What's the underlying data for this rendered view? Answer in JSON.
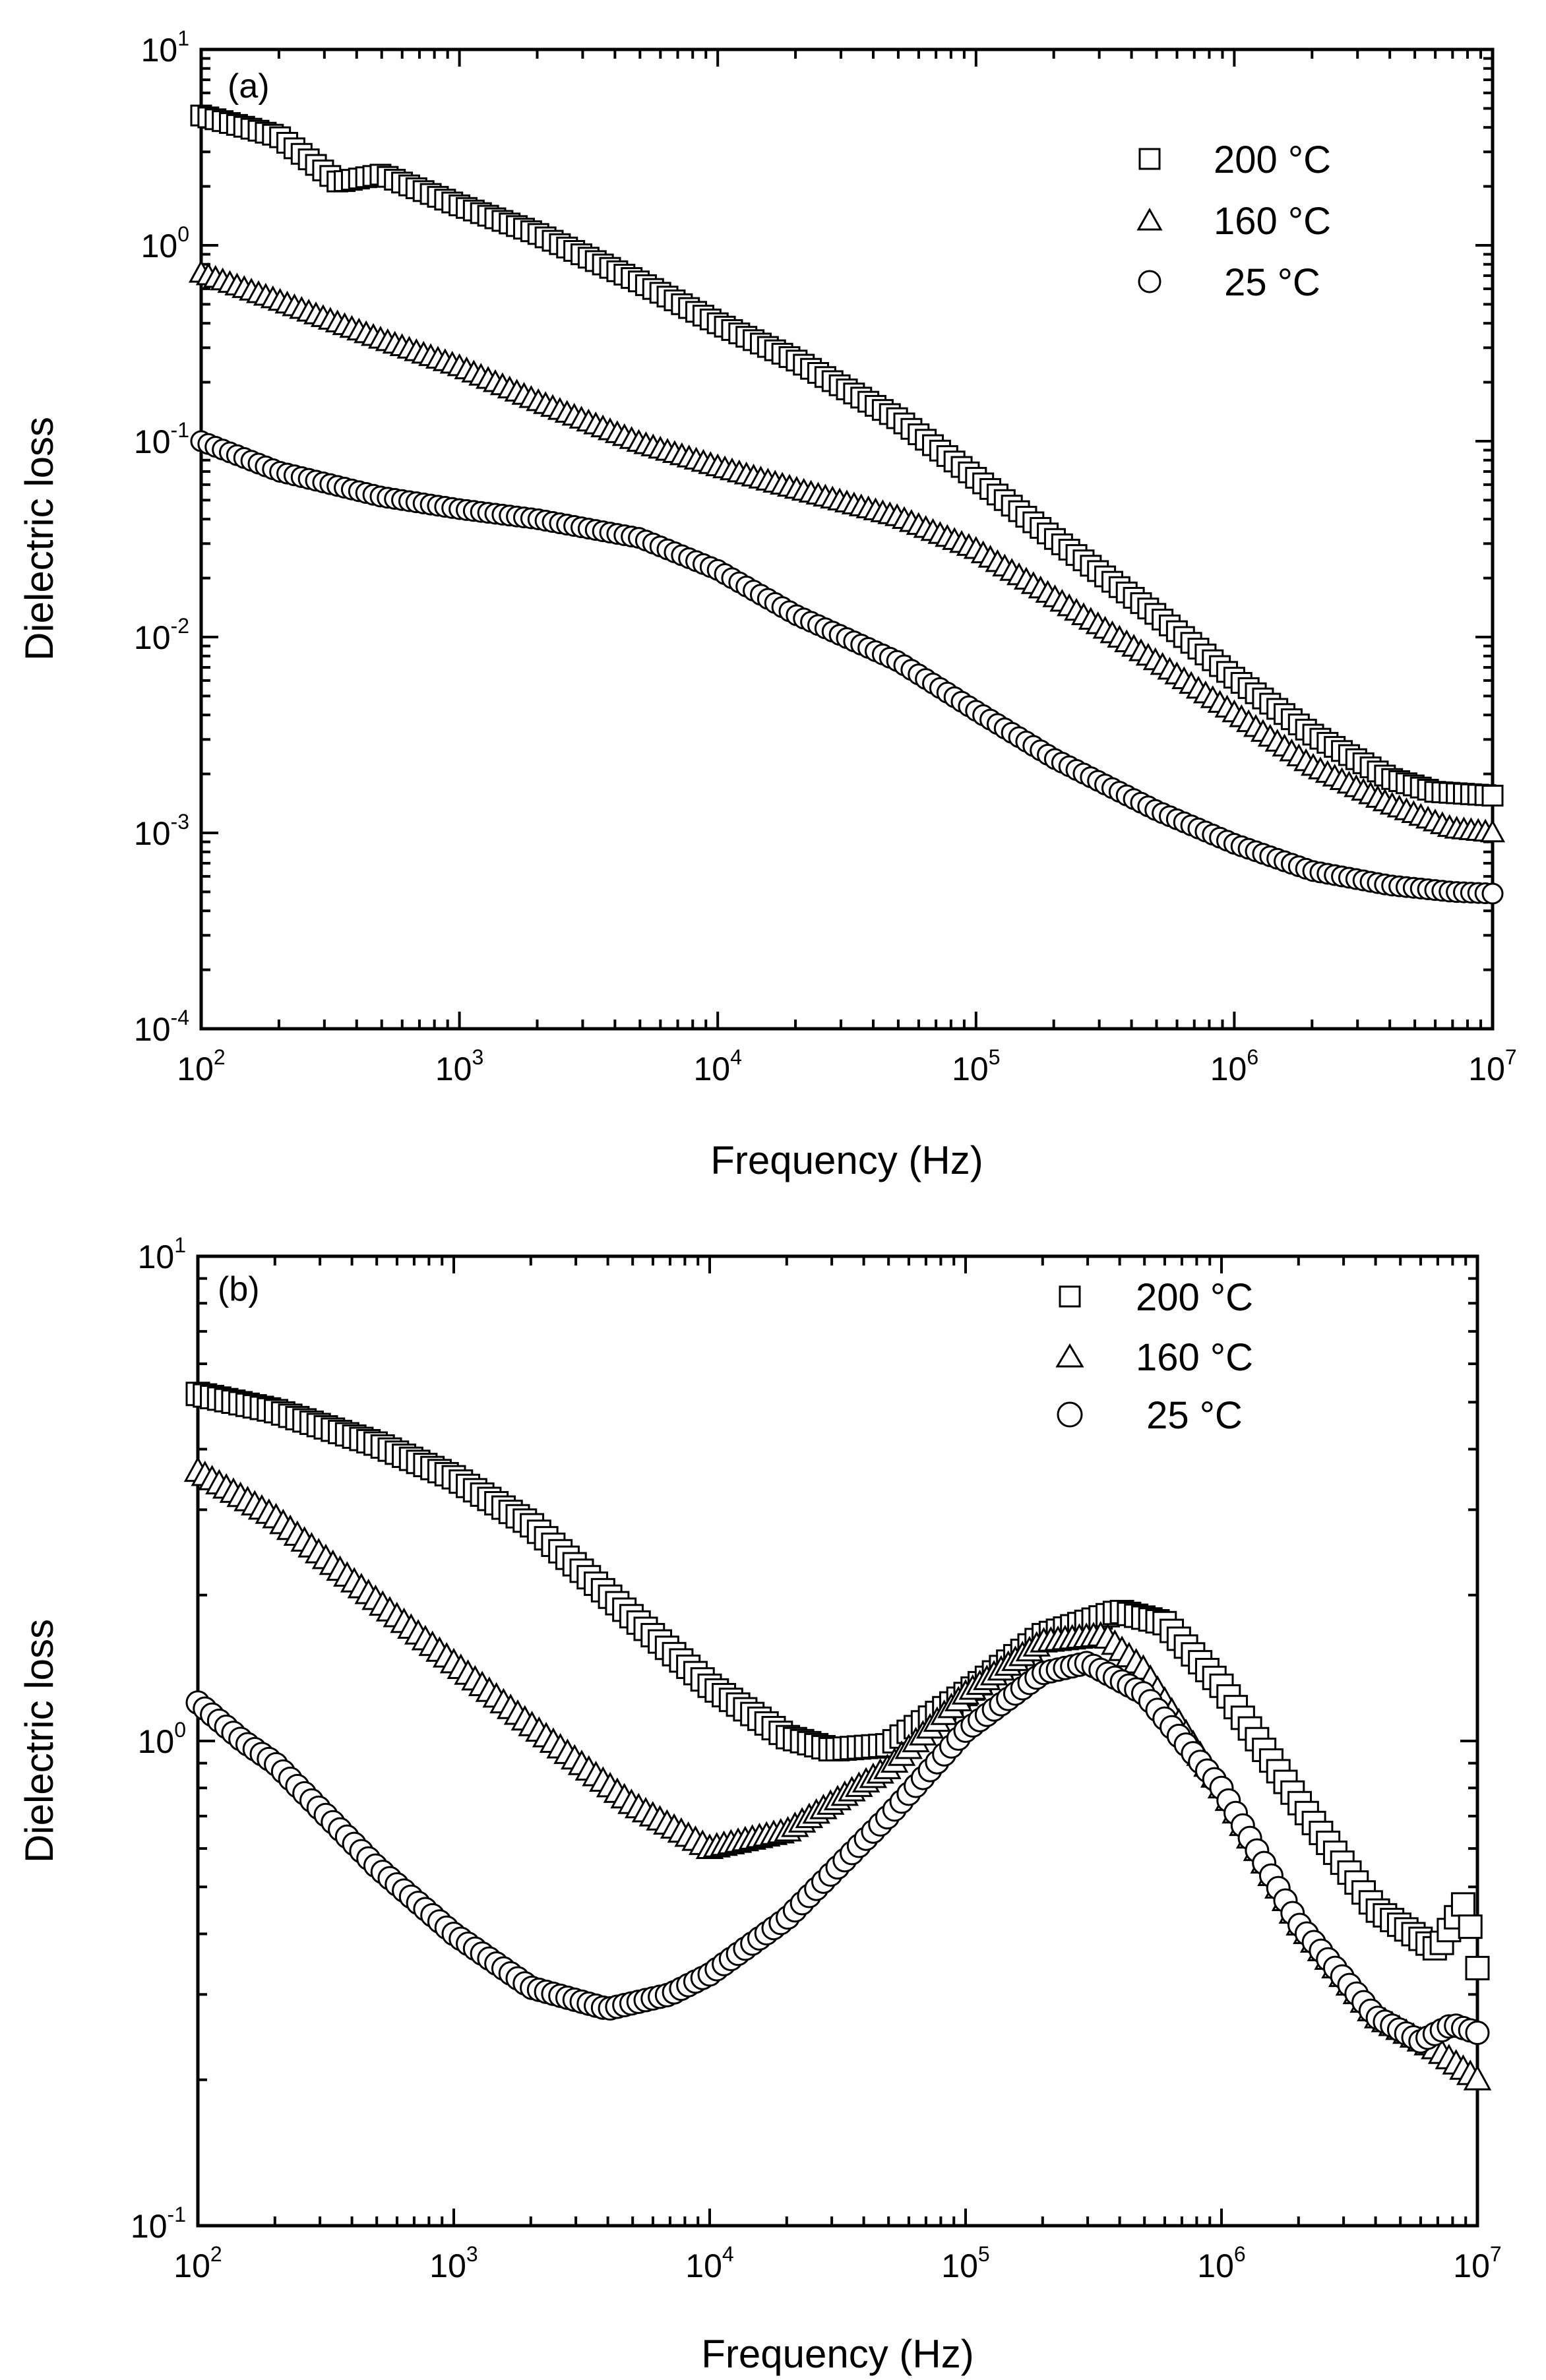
{
  "chart_data": [
    {
      "type": "scatter",
      "panel_label": "(a)",
      "xlabel": "Frequency (Hz)",
      "ylabel": "Dielectric loss",
      "xscale": "log",
      "yscale": "log",
      "xlim": [
        100,
        10000000
      ],
      "ylim": [
        0.0001,
        10
      ],
      "x_ticks": [
        {
          "base": "10",
          "exp": "2",
          "value": 100
        },
        {
          "base": "10",
          "exp": "3",
          "value": 1000
        },
        {
          "base": "10",
          "exp": "4",
          "value": 10000
        },
        {
          "base": "10",
          "exp": "5",
          "value": 100000
        },
        {
          "base": "10",
          "exp": "6",
          "value": 1000000
        },
        {
          "base": "10",
          "exp": "7",
          "value": 10000000
        }
      ],
      "y_ticks": [
        {
          "base": "10",
          "exp": "-4",
          "value": 0.0001
        },
        {
          "base": "10",
          "exp": "-3",
          "value": 0.001
        },
        {
          "base": "10",
          "exp": "-2",
          "value": 0.01
        },
        {
          "base": "10",
          "exp": "-1",
          "value": 0.1
        },
        {
          "base": "10",
          "exp": "0",
          "value": 1
        },
        {
          "base": "10",
          "exp": "1",
          "value": 10
        }
      ],
      "legend_position": "top-right",
      "series": [
        {
          "name": "200 °C",
          "marker": "square",
          "points": [
            [
              100,
              4.6
            ],
            [
              150,
              4.0
            ],
            [
              200,
              3.6
            ],
            [
              340,
              2.1
            ],
            [
              500,
              2.3
            ],
            [
              1000,
              1.6
            ],
            [
              2000,
              1.15
            ],
            [
              5000,
              0.65
            ],
            [
              10000,
              0.4
            ],
            [
              20000,
              0.26
            ],
            [
              50000,
              0.13
            ],
            [
              100000,
              0.065
            ],
            [
              200000,
              0.032
            ],
            [
              500000,
              0.013
            ],
            [
              1000000,
              0.0062
            ],
            [
              2000000,
              0.0032
            ],
            [
              4000000,
              0.0019
            ],
            [
              6000000,
              0.00162
            ],
            [
              10000000,
              0.00155
            ]
          ]
        },
        {
          "name": "160 °C",
          "marker": "triangle",
          "points": [
            [
              100,
              0.72
            ],
            [
              200,
              0.52
            ],
            [
              500,
              0.33
            ],
            [
              1000,
              0.24
            ],
            [
              2000,
              0.16
            ],
            [
              5000,
              0.098
            ],
            [
              10000,
              0.074
            ],
            [
              20000,
              0.057
            ],
            [
              50000,
              0.041
            ],
            [
              100000,
              0.028
            ],
            [
              200000,
              0.016
            ],
            [
              500000,
              0.0075
            ],
            [
              1000000,
              0.0041
            ],
            [
              2000000,
              0.0022
            ],
            [
              4000000,
              0.0014
            ],
            [
              7000000,
              0.00105
            ],
            [
              10000000,
              0.001
            ]
          ]
        },
        {
          "name": "25 °C",
          "marker": "circle",
          "points": [
            [
              100,
              0.1
            ],
            [
              200,
              0.07
            ],
            [
              500,
              0.052
            ],
            [
              1000,
              0.045
            ],
            [
              2000,
              0.04
            ],
            [
              5000,
              0.032
            ],
            [
              10000,
              0.022
            ],
            [
              20000,
              0.013
            ],
            [
              50000,
              0.0075
            ],
            [
              100000,
              0.0042
            ],
            [
              200000,
              0.0024
            ],
            [
              500000,
              0.0013
            ],
            [
              1000000,
              0.00088
            ],
            [
              2000000,
              0.00064
            ],
            [
              4000000,
              0.00054
            ],
            [
              7000000,
              0.0005
            ],
            [
              10000000,
              0.00049
            ]
          ]
        }
      ]
    },
    {
      "type": "scatter",
      "panel_label": "(b)",
      "xlabel": "Frequency (Hz)",
      "ylabel": "Dielectric loss",
      "xscale": "log",
      "yscale": "log",
      "xlim": [
        100,
        10000000
      ],
      "ylim": [
        0.1,
        10
      ],
      "x_ticks": [
        {
          "base": "10",
          "exp": "2",
          "value": 100
        },
        {
          "base": "10",
          "exp": "3",
          "value": 1000
        },
        {
          "base": "10",
          "exp": "4",
          "value": 10000
        },
        {
          "base": "10",
          "exp": "5",
          "value": 100000
        },
        {
          "base": "10",
          "exp": "6",
          "value": 1000000
        },
        {
          "base": "10",
          "exp": "7",
          "value": 10000000
        }
      ],
      "y_ticks": [
        {
          "base": "10",
          "exp": "-1",
          "value": 0.1
        },
        {
          "base": "10",
          "exp": "0",
          "value": 1
        },
        {
          "base": "10",
          "exp": "1",
          "value": 10
        }
      ],
      "legend_position": "top-right",
      "series": [
        {
          "name": "200 °C",
          "marker": "square",
          "points": [
            [
              100,
              5.2
            ],
            [
              200,
              4.8
            ],
            [
              500,
              4.1
            ],
            [
              1000,
              3.5
            ],
            [
              2000,
              2.8
            ],
            [
              5000,
              1.8
            ],
            [
              10000,
              1.3
            ],
            [
              20000,
              1.02
            ],
            [
              30000,
              0.96
            ],
            [
              50000,
              0.98
            ],
            [
              100000,
              1.25
            ],
            [
              200000,
              1.65
            ],
            [
              400000,
              1.85
            ],
            [
              600000,
              1.75
            ],
            [
              1000000,
              1.3
            ],
            [
              2000000,
              0.75
            ],
            [
              4000000,
              0.45
            ],
            [
              7000000,
              0.37
            ],
            [
              9000000,
              0.47
            ],
            [
              10000000,
              0.34
            ]
          ]
        },
        {
          "name": "160 °C",
          "marker": "triangle",
          "points": [
            [
              100,
              3.6
            ],
            [
              200,
              2.9
            ],
            [
              500,
              1.95
            ],
            [
              1000,
              1.45
            ],
            [
              2000,
              1.08
            ],
            [
              5000,
              0.74
            ],
            [
              10000,
              0.6
            ],
            [
              20000,
              0.65
            ],
            [
              50000,
              0.88
            ],
            [
              100000,
              1.25
            ],
            [
              200000,
              1.6
            ],
            [
              350000,
              1.65
            ],
            [
              500000,
              1.4
            ],
            [
              1000000,
              0.8
            ],
            [
              2000000,
              0.42
            ],
            [
              4000000,
              0.27
            ],
            [
              7000000,
              0.23
            ],
            [
              10000000,
              0.2
            ]
          ]
        },
        {
          "name": "25 °C",
          "marker": "circle",
          "points": [
            [
              100,
              1.2
            ],
            [
              150,
              1.0
            ],
            [
              200,
              0.9
            ],
            [
              500,
              0.55
            ],
            [
              1000,
              0.4
            ],
            [
              2000,
              0.31
            ],
            [
              4000,
              0.28
            ],
            [
              7000,
              0.3
            ],
            [
              10000,
              0.33
            ],
            [
              20000,
              0.43
            ],
            [
              50000,
              0.7
            ],
            [
              100000,
              1.05
            ],
            [
              200000,
              1.38
            ],
            [
              300000,
              1.45
            ],
            [
              500000,
              1.25
            ],
            [
              1000000,
              0.8
            ],
            [
              2000000,
              0.42
            ],
            [
              4000000,
              0.27
            ],
            [
              6000000,
              0.24
            ],
            [
              8000000,
              0.26
            ],
            [
              10000000,
              0.25
            ]
          ]
        }
      ]
    }
  ],
  "legend": [
    {
      "label": "200 °C"
    },
    {
      "label": "160 °C"
    },
    {
      "label": " 25 °C"
    }
  ]
}
